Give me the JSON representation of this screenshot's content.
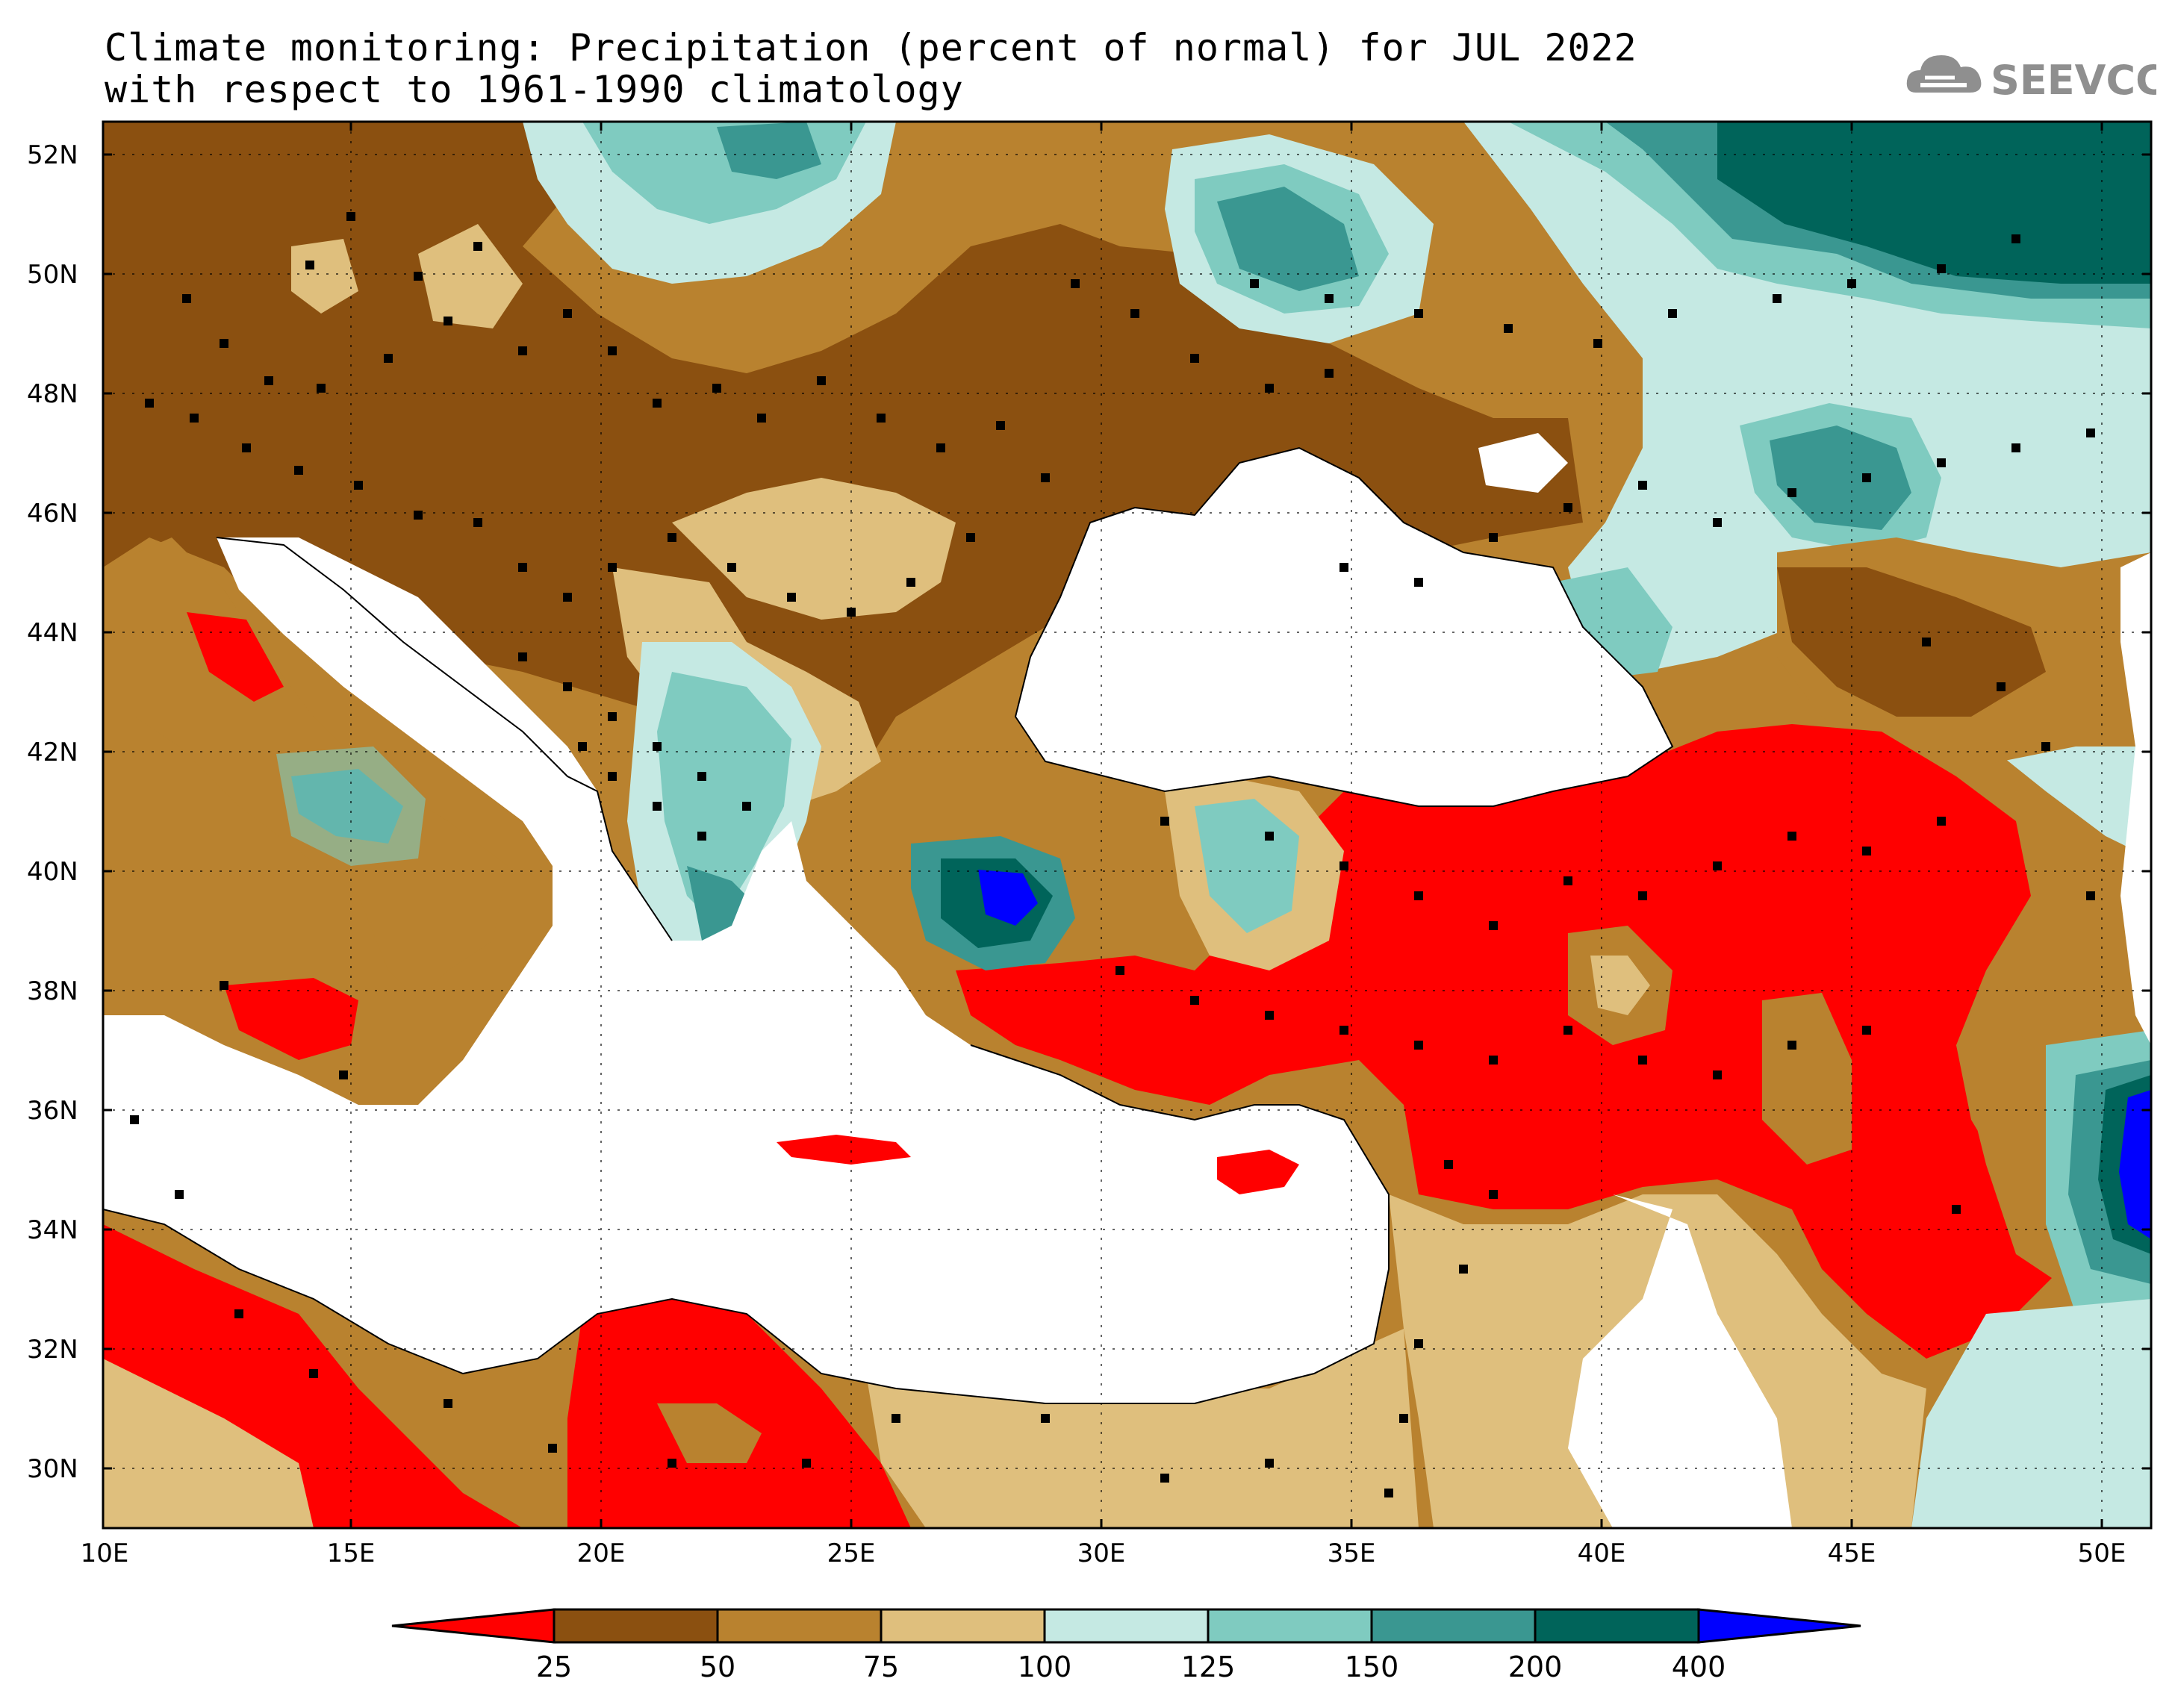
{
  "title": {
    "line1": "Climate monitoring: Precipitation (percent of normal) for JUL 2022",
    "line2": "with respect to 1961-1990 climatology"
  },
  "logo": {
    "text": "SEEVCCC",
    "icon": "cloud-icon"
  },
  "axes": {
    "lat_labels": [
      "52N",
      "50N",
      "48N",
      "46N",
      "44N",
      "42N",
      "40N",
      "38N",
      "36N",
      "34N",
      "32N",
      "30N"
    ],
    "lon_labels": [
      "10E",
      "15E",
      "20E",
      "25E",
      "30E",
      "35E",
      "40E",
      "45E",
      "50E"
    ],
    "lat_range": [
      29,
      52.5
    ],
    "lon_range": [
      10,
      51
    ]
  },
  "colorbar": {
    "ticks": [
      "25",
      "50",
      "75",
      "100",
      "125",
      "150",
      "200",
      "400"
    ],
    "colors": [
      "#ff0000",
      "#8b5010",
      "#b9822f",
      "#dfbf7d",
      "#c5e9e3",
      "#7fcbc0",
      "#3a9791",
      "#00645a",
      "#0000ff"
    ],
    "ocean_color": "#ffffff",
    "grid": "dotted"
  }
}
